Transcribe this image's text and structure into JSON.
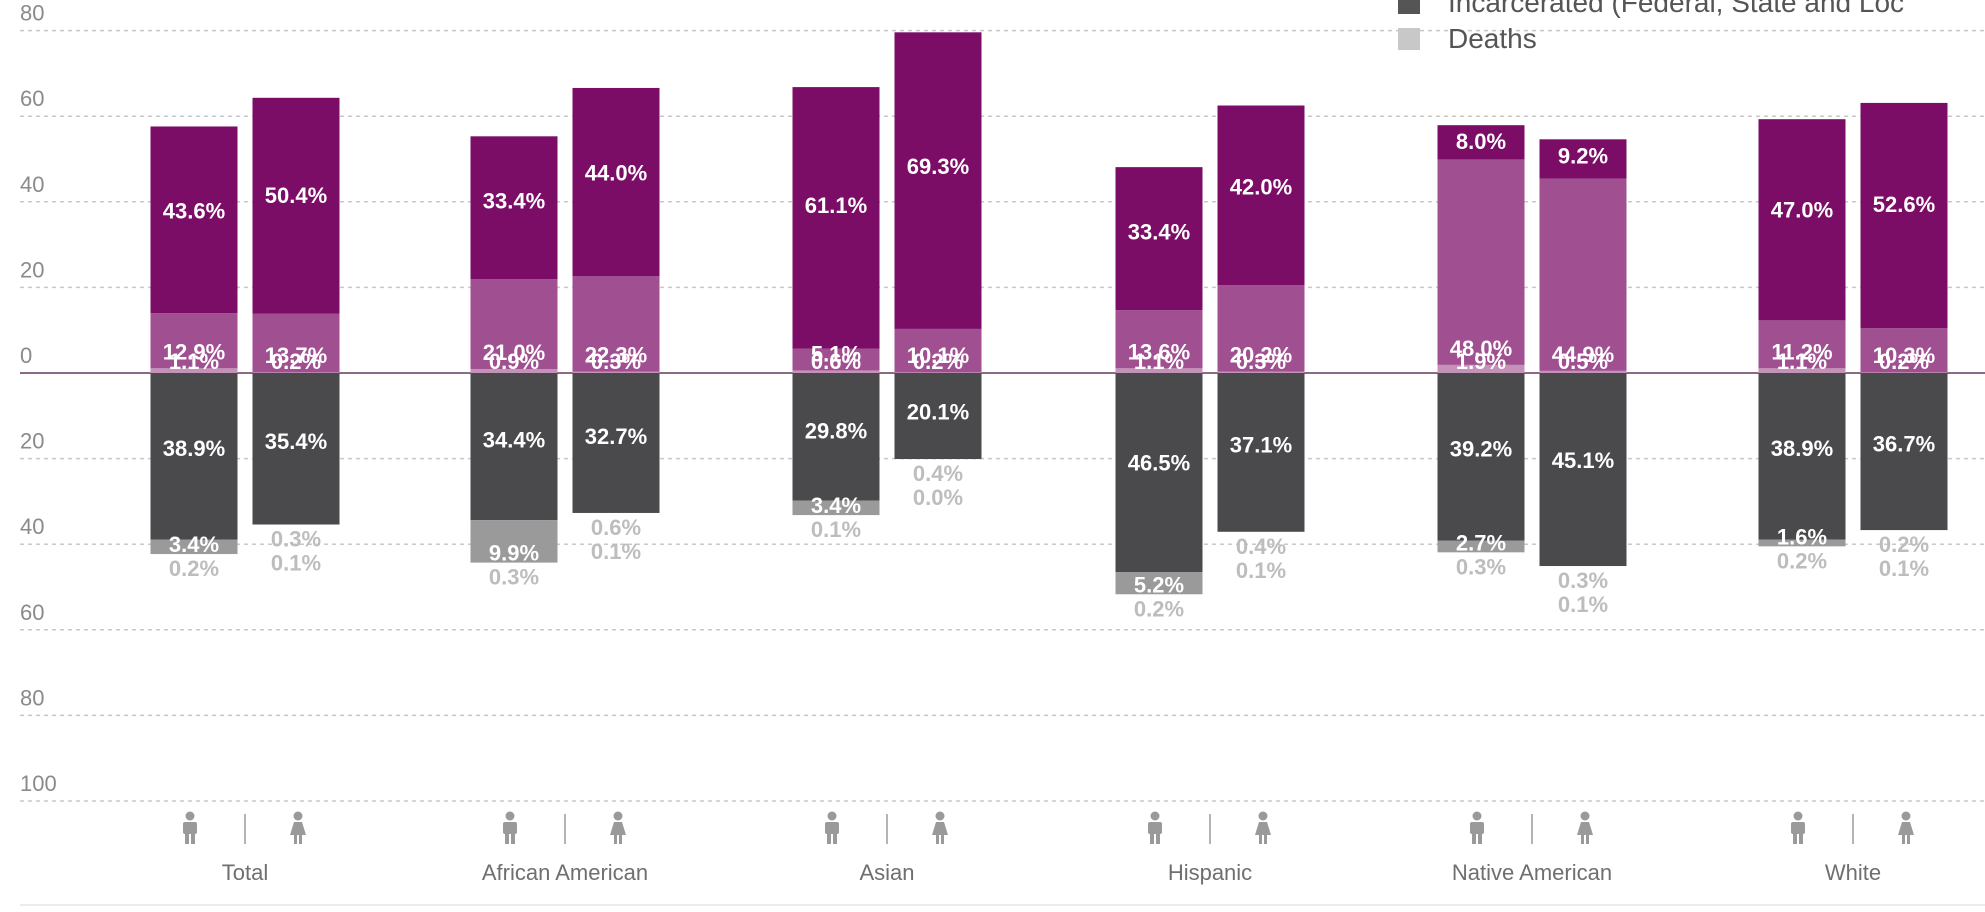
{
  "chart_data": {
    "type": "bar",
    "stacked": "diverging",
    "y_axis": {
      "ticks_above": [
        80,
        60,
        40,
        20,
        0
      ],
      "ticks_below": [
        20,
        40,
        60,
        80,
        100
      ],
      "ylim": [
        -100,
        80
      ],
      "grid": true
    },
    "legend": {
      "placement": "top-right",
      "items": [
        {
          "label": "Incarcerated (Federal, State and Loc",
          "color": "#555555"
        },
        {
          "label": "Deaths",
          "color": "#c8c8c8"
        }
      ]
    },
    "colors": {
      "top": "#7b0d67",
      "middle": "#a04f90",
      "bottom_small": "#c492b9",
      "incarcerated": "#4a4a4c",
      "deaths_box": "#9a9a9a",
      "text_light": "#bdbdbd",
      "axis_line": "#8a6a84",
      "grid": "#c8c8c8"
    },
    "icons": {
      "left": "male-person-icon",
      "right": "female-person-icon"
    },
    "categories": [
      "Total",
      "African American",
      "Asian",
      "Hispanic",
      "Native American",
      "White"
    ],
    "bars": [
      {
        "category": "Total",
        "sex": "male",
        "above": [
          {
            "value": 1.1,
            "label": "1.1%"
          },
          {
            "value": 12.9,
            "label": "12.9%"
          },
          {
            "value": 43.6,
            "label": "43.6%"
          }
        ],
        "below": [
          {
            "value": 38.9,
            "label": "38.9%"
          },
          {
            "value": 3.4,
            "label": "3.4%"
          }
        ],
        "below_text": [
          "0.2%"
        ]
      },
      {
        "category": "Total",
        "sex": "female",
        "above": [
          {
            "value": 0.2,
            "label": "0.2%"
          },
          {
            "value": 13.7,
            "label": "13.7%"
          },
          {
            "value": 50.4,
            "label": "50.4%"
          }
        ],
        "below": [
          {
            "value": 35.4,
            "label": "35.4%"
          }
        ],
        "below_text": [
          "0.3%",
          "0.1%"
        ]
      },
      {
        "category": "African American",
        "sex": "male",
        "above": [
          {
            "value": 0.9,
            "label": "0.9%"
          },
          {
            "value": 21.0,
            "label": "21.0%"
          },
          {
            "value": 33.4,
            "label": "33.4%"
          }
        ],
        "below": [
          {
            "value": 34.4,
            "label": "34.4%"
          },
          {
            "value": 9.9,
            "label": "9.9%"
          }
        ],
        "below_text": [
          "0.3%"
        ]
      },
      {
        "category": "African American",
        "sex": "female",
        "above": [
          {
            "value": 0.3,
            "label": "0.3%"
          },
          {
            "value": 22.3,
            "label": "22.3%"
          },
          {
            "value": 44.0,
            "label": "44.0%"
          }
        ],
        "below": [
          {
            "value": 32.7,
            "label": "32.7%"
          }
        ],
        "below_text": [
          "0.6%",
          "0.1%"
        ]
      },
      {
        "category": "Asian",
        "sex": "male",
        "above": [
          {
            "value": 0.6,
            "label": "0.6%"
          },
          {
            "value": 5.1,
            "label": "5.1%"
          },
          {
            "value": 61.1,
            "label": "61.1%"
          }
        ],
        "below": [
          {
            "value": 29.8,
            "label": "29.8%"
          },
          {
            "value": 3.4,
            "label": "3.4%"
          }
        ],
        "below_text": [
          "0.1%"
        ]
      },
      {
        "category": "Asian",
        "sex": "female",
        "above": [
          {
            "value": 0.2,
            "label": "0.2%"
          },
          {
            "value": 10.1,
            "label": "10.1%"
          },
          {
            "value": 69.3,
            "label": "69.3%"
          }
        ],
        "below": [
          {
            "value": 20.1,
            "label": "20.1%"
          }
        ],
        "below_text": [
          "0.4%",
          "0.0%"
        ]
      },
      {
        "category": "Hispanic",
        "sex": "male",
        "above": [
          {
            "value": 1.1,
            "label": "1.1%"
          },
          {
            "value": 13.6,
            "label": "13.6%"
          },
          {
            "value": 33.4,
            "label": "33.4%"
          }
        ],
        "below": [
          {
            "value": 46.5,
            "label": "46.5%"
          },
          {
            "value": 5.2,
            "label": "5.2%"
          }
        ],
        "below_text": [
          "0.2%"
        ]
      },
      {
        "category": "Hispanic",
        "sex": "female",
        "above": [
          {
            "value": 0.3,
            "label": "0.3%"
          },
          {
            "value": 20.2,
            "label": "20.2%"
          },
          {
            "value": 42.0,
            "label": "42.0%"
          }
        ],
        "below": [
          {
            "value": 37.1,
            "label": "37.1%"
          }
        ],
        "below_text": [
          "0.4%",
          "0.1%"
        ]
      },
      {
        "category": "Native American",
        "sex": "male",
        "above": [
          {
            "value": 1.9,
            "label": "1.9%"
          },
          {
            "value": 48.0,
            "label": "48.0%"
          },
          {
            "value": 8.0,
            "label": "8.0%"
          }
        ],
        "below": [
          {
            "value": 39.2,
            "label": "39.2%"
          },
          {
            "value": 2.7,
            "label": "2.7%"
          }
        ],
        "below_text": [
          "0.3%"
        ]
      },
      {
        "category": "Native American",
        "sex": "female",
        "above": [
          {
            "value": 0.5,
            "label": "0.5%"
          },
          {
            "value": 44.9,
            "label": "44.9%"
          },
          {
            "value": 9.2,
            "label": "9.2%"
          }
        ],
        "below": [
          {
            "value": 45.1,
            "label": "45.1%"
          }
        ],
        "below_text": [
          "0.3%",
          "0.1%"
        ]
      },
      {
        "category": "White",
        "sex": "male",
        "above": [
          {
            "value": 1.1,
            "label": "1.1%"
          },
          {
            "value": 11.2,
            "label": "11.2%"
          },
          {
            "value": 47.0,
            "label": "47.0%"
          }
        ],
        "below": [
          {
            "value": 38.9,
            "label": "38.9%"
          },
          {
            "value": 1.6,
            "label": "1.6%"
          }
        ],
        "below_text": [
          "0.2%"
        ]
      },
      {
        "category": "White",
        "sex": "female",
        "above": [
          {
            "value": 0.2,
            "label": "0.2%"
          },
          {
            "value": 10.3,
            "label": "10.3%"
          },
          {
            "value": 52.6,
            "label": "52.6%"
          }
        ],
        "below": [
          {
            "value": 36.7,
            "label": "36.7%"
          }
        ],
        "below_text": [
          "0.2%",
          "0.1%"
        ]
      }
    ]
  }
}
